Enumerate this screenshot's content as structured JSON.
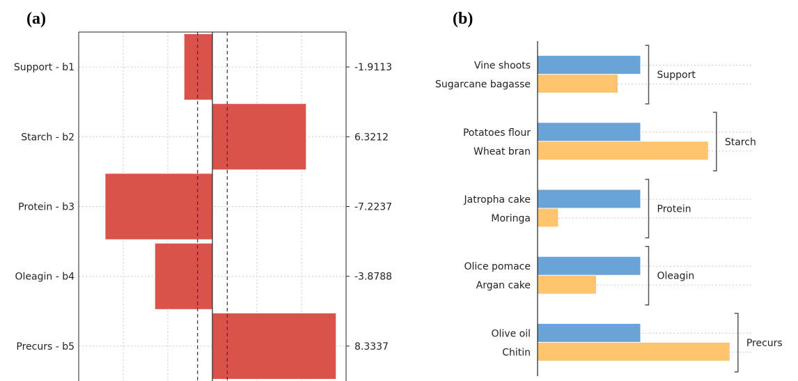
{
  "chart_data": [
    {
      "panel": "(a)",
      "type": "bar",
      "orientation": "horizontal",
      "categories": [
        "Support - b1",
        "Starch  - b2",
        "Protein - b3",
        "Oleagin - b4",
        "Precurs - b5"
      ],
      "values": [
        -1.9113,
        6.3212,
        -7.2237,
        -3.8788,
        8.3337
      ],
      "value_labels": [
        "-1.9113",
        "6.3212",
        "-7.2237",
        "-3.8788",
        "8.3337"
      ],
      "xlim": [
        -9,
        9
      ],
      "grid": true,
      "reference_lines": {
        "zero": 0,
        "dashed": [
          -1,
          1
        ]
      },
      "colors": {
        "bar": "#d9534a",
        "bar_edge": "#c0392b",
        "grid": "#c8c8c8",
        "axis": "#222222"
      }
    },
    {
      "panel": "(b)",
      "type": "bar",
      "orientation": "horizontal",
      "groups": [
        {
          "name": "Support",
          "items": [
            "Vine shoots",
            "Sugarcane bagasse"
          ]
        },
        {
          "name": "Starch",
          "items": [
            "Potatoes flour",
            "Wheat bran"
          ]
        },
        {
          "name": "Protein",
          "items": [
            "Jatropha cake",
            "Moringa"
          ]
        },
        {
          "name": "Oleagin",
          "items": [
            "Olice pomace",
            "Argan cake"
          ]
        },
        {
          "name": "Precurs",
          "items": [
            "Olive oil",
            "Chitin"
          ]
        }
      ],
      "series": [
        {
          "values": [
            1,
            1,
            1,
            1,
            1
          ],
          "color": "#6aa3d5"
        },
        {
          "values": [
            0.78,
            1.66,
            0.2,
            0.57,
            1.87
          ],
          "color": "#ffc46e"
        }
      ],
      "xlim": [
        0,
        2
      ],
      "grid": true,
      "colors": {
        "grid": "#c8c8c8",
        "axis": "#222222",
        "bracket": "#555555"
      }
    }
  ]
}
